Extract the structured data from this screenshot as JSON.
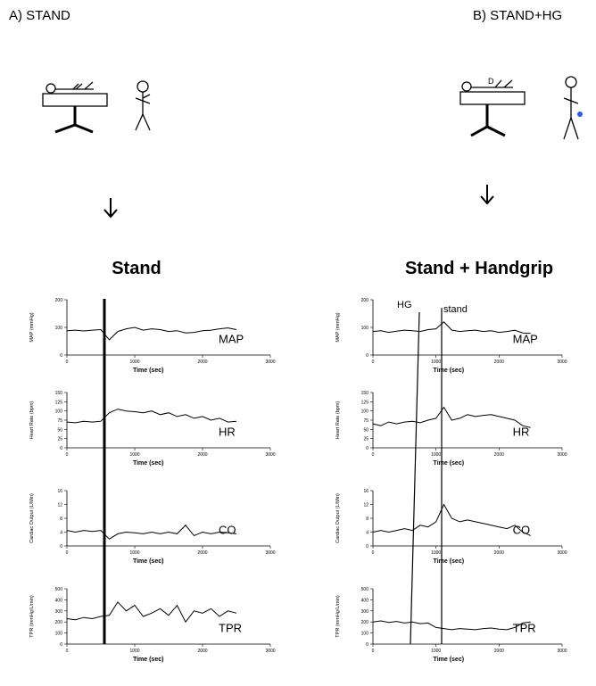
{
  "panels": [
    {
      "label": "A)  STAND",
      "title": "Stand"
    },
    {
      "label": "B) STAND+HG",
      "title": "Stand + Handgrip"
    }
  ],
  "markers": {
    "hg": "HG",
    "stand": "stand"
  },
  "chart_data": [
    {
      "type": "line",
      "ylabel": "MAP (mmHg)",
      "xlabel": "Time (sec)",
      "series_label": "MAP",
      "x": [
        0,
        125,
        250,
        375,
        500,
        625,
        750,
        875,
        1000,
        1125,
        1250,
        1375,
        1500,
        1625,
        1750,
        1875,
        2000,
        2125,
        2250,
        2375,
        2500
      ],
      "values": [
        88,
        90,
        87,
        90,
        92,
        55,
        85,
        95,
        100,
        90,
        95,
        92,
        85,
        88,
        80,
        82,
        88,
        90,
        95,
        98,
        92
      ],
      "xlim": [
        0,
        3000
      ],
      "xticks": [
        0,
        1000,
        2000,
        3000
      ],
      "ylim": [
        0,
        200
      ],
      "yticks": [
        0,
        100,
        200
      ]
    },
    {
      "type": "line",
      "ylabel": "Heart Rate (bpm)",
      "xlabel": "Time (sec)",
      "series_label": "HR",
      "x": [
        0,
        125,
        250,
        375,
        500,
        625,
        750,
        875,
        1000,
        1125,
        1250,
        1375,
        1500,
        1625,
        1750,
        1875,
        2000,
        2125,
        2250,
        2375,
        2500
      ],
      "values": [
        70,
        68,
        72,
        70,
        72,
        95,
        105,
        100,
        98,
        95,
        100,
        90,
        95,
        85,
        90,
        80,
        85,
        75,
        80,
        70,
        72
      ],
      "xlim": [
        0,
        3000
      ],
      "xticks": [
        0,
        1000,
        2000,
        3000
      ],
      "ylim": [
        0,
        150
      ],
      "yticks": [
        0,
        25,
        50,
        75,
        100,
        125,
        150
      ]
    },
    {
      "type": "line",
      "ylabel": "Cardiac Output (L/Min)",
      "xlabel": "Time (sec)",
      "series_label": "CO",
      "x": [
        0,
        125,
        250,
        375,
        500,
        625,
        750,
        875,
        1000,
        1125,
        1250,
        1375,
        1500,
        1625,
        1750,
        1875,
        2000,
        2125,
        2250,
        2375,
        2500
      ],
      "values": [
        4.5,
        4,
        4.5,
        4.2,
        4.5,
        2,
        3.5,
        4,
        3.8,
        3.5,
        4,
        3.5,
        4,
        3.5,
        6,
        3,
        4,
        3.5,
        4,
        3.8,
        3.5
      ],
      "xlim": [
        0,
        3000
      ],
      "xticks": [
        0,
        1000,
        2000,
        3000
      ],
      "ylim": [
        0,
        16
      ],
      "yticks": [
        0,
        4,
        8,
        12,
        16
      ]
    },
    {
      "type": "line",
      "ylabel": "TPR (mmHg/L/min)",
      "xlabel": "Time (sec)",
      "series_label": "TPR",
      "x": [
        0,
        125,
        250,
        375,
        500,
        625,
        750,
        875,
        1000,
        1125,
        1250,
        1375,
        1500,
        1625,
        1750,
        1875,
        2000,
        2125,
        2250,
        2375,
        2500
      ],
      "values": [
        230,
        220,
        240,
        230,
        250,
        260,
        380,
        300,
        350,
        250,
        280,
        320,
        260,
        350,
        200,
        300,
        280,
        320,
        250,
        300,
        280
      ],
      "xlim": [
        0,
        3000
      ],
      "xticks": [
        0,
        1000,
        2000,
        3000
      ],
      "ylim": [
        0,
        500
      ],
      "yticks": [
        0,
        100,
        200,
        300,
        400,
        500
      ]
    },
    {
      "type": "line",
      "ylabel": "MAP (mmHg)",
      "xlabel": "Time (sec)",
      "series_label": "MAP",
      "x": [
        0,
        125,
        250,
        375,
        500,
        625,
        750,
        875,
        1000,
        1125,
        1250,
        1375,
        1500,
        1625,
        1750,
        1875,
        2000,
        2125,
        2250,
        2375,
        2500
      ],
      "values": [
        85,
        88,
        82,
        86,
        90,
        88,
        85,
        92,
        95,
        120,
        90,
        85,
        88,
        90,
        85,
        88,
        82,
        85,
        90,
        80,
        78
      ],
      "xlim": [
        0,
        3000
      ],
      "xticks": [
        0,
        1000,
        2000,
        3000
      ],
      "ylim": [
        0,
        200
      ],
      "yticks": [
        0,
        100,
        200
      ]
    },
    {
      "type": "line",
      "ylabel": "Heart Rate (bpm)",
      "xlabel": "Time (sec)",
      "series_label": "HR",
      "x": [
        0,
        125,
        250,
        375,
        500,
        625,
        750,
        875,
        1000,
        1125,
        1250,
        1375,
        1500,
        1625,
        1750,
        1875,
        2000,
        2125,
        2250,
        2375,
        2500
      ],
      "values": [
        65,
        60,
        70,
        65,
        70,
        72,
        68,
        75,
        80,
        110,
        75,
        80,
        90,
        85,
        88,
        90,
        85,
        80,
        75,
        60,
        55
      ],
      "xlim": [
        0,
        3000
      ],
      "xticks": [
        0,
        1000,
        2000,
        3000
      ],
      "ylim": [
        0,
        150
      ],
      "yticks": [
        0,
        25,
        50,
        75,
        100,
        125,
        150
      ]
    },
    {
      "type": "line",
      "ylabel": "Cardiac Output (L/Min)",
      "xlabel": "Time (sec)",
      "series_label": "CO",
      "x": [
        0,
        125,
        250,
        375,
        500,
        625,
        750,
        875,
        1000,
        1125,
        1250,
        1375,
        1500,
        1625,
        1750,
        1875,
        2000,
        2125,
        2250,
        2375,
        2500
      ],
      "values": [
        4,
        4.5,
        4,
        4.5,
        5,
        4.5,
        6,
        5.5,
        7,
        12,
        8,
        7,
        7.5,
        7,
        6.5,
        6,
        5.5,
        5,
        6,
        4,
        3
      ],
      "xlim": [
        0,
        3000
      ],
      "xticks": [
        0,
        1000,
        2000,
        3000
      ],
      "ylim": [
        0,
        16
      ],
      "yticks": [
        0,
        4,
        8,
        12,
        16
      ]
    },
    {
      "type": "line",
      "ylabel": "TPR (mmHg/L/min)",
      "xlabel": "Time (sec)",
      "series_label": "TPR",
      "x": [
        0,
        125,
        250,
        375,
        500,
        625,
        750,
        875,
        1000,
        1125,
        1250,
        1375,
        1500,
        1625,
        1750,
        1875,
        2000,
        2125,
        2250,
        2375,
        2500
      ],
      "values": [
        200,
        210,
        195,
        205,
        190,
        200,
        185,
        190,
        150,
        140,
        130,
        140,
        135,
        130,
        140,
        145,
        135,
        130,
        150,
        190,
        200
      ],
      "xlim": [
        0,
        3000
      ],
      "xticks": [
        0,
        1000,
        2000,
        3000
      ],
      "ylim": [
        0,
        500
      ],
      "yticks": [
        0,
        100,
        200,
        300,
        400,
        500
      ]
    }
  ]
}
